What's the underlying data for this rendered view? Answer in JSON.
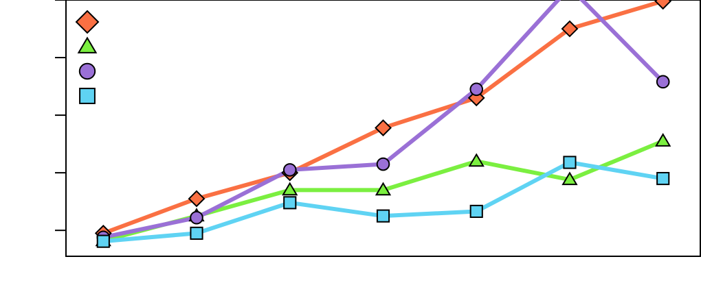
{
  "chart_data": {
    "type": "line",
    "title": "",
    "xlabel": "",
    "ylabel": "",
    "x": [
      1,
      2,
      3,
      4,
      5,
      6,
      7
    ],
    "xlim": [
      0.6,
      7.4
    ],
    "ylim": [
      0.55,
      5.0
    ],
    "y_ticks": [
      1,
      2,
      3,
      4,
      5
    ],
    "grid": false,
    "legend": "top-left",
    "series": [
      {
        "marker": "diamond",
        "color": "#fa7043",
        "values": [
          0.95,
          1.55,
          2.0,
          2.78,
          3.3,
          4.5,
          4.98
        ]
      },
      {
        "marker": "triangle",
        "color": "#7bef40",
        "values": [
          0.82,
          1.25,
          1.7,
          1.7,
          2.2,
          1.88,
          2.55
        ]
      },
      {
        "marker": "circle",
        "color": "#9a70d6",
        "values": [
          0.88,
          1.22,
          2.05,
          2.15,
          3.45,
          5.22,
          3.58
        ]
      },
      {
        "marker": "square",
        "color": "#5fd3f3",
        "values": [
          0.81,
          0.95,
          1.48,
          1.25,
          1.33,
          2.18,
          1.9
        ]
      }
    ]
  }
}
